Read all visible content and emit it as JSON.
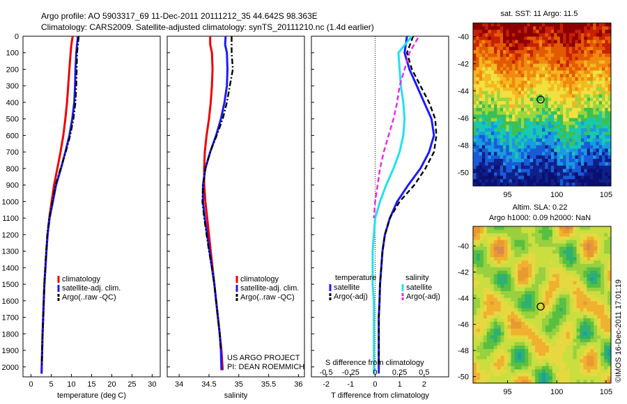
{
  "header": {
    "title_line1": "Argo profile: AO 5903317_69 11-Dec-2011 20111212_35 44.642S 98.363E",
    "title_line2": "Climatology: CARS2009. Satellite-adjusted climatology: synTS_20111210.nc (1.4d earlier)"
  },
  "colors": {
    "climatology": "#ee0000",
    "satellite": "#1a1aff",
    "argo": "#000000",
    "salinity_satellite": "#22e0ee",
    "salinity_argo": "#ee22ee"
  },
  "annotations": {
    "project": "US ARGO PROJECT",
    "pi": "PI: DEAN ROEMMICH",
    "credit": "©IMOS 16-Dec-2011 17:01:19",
    "s_diff_label": "S difference from climatology"
  },
  "chart_data": [
    {
      "id": "temperature",
      "type": "line",
      "xlabel": "temperature (deg C)",
      "xlim": [
        -2,
        32
      ],
      "ylim": [
        2060,
        0
      ],
      "x_ticks": [
        "0",
        "5",
        "10",
        "15",
        "20",
        "25",
        "30"
      ],
      "x_tick_values": [
        0,
        5,
        10,
        15,
        20,
        25,
        30
      ],
      "y_ticks": [
        "0",
        "100",
        "200",
        "300",
        "400",
        "500",
        "600",
        "700",
        "800",
        "900",
        "1000",
        "1100",
        "1200",
        "1300",
        "1400",
        "1500",
        "1600",
        "1700",
        "1800",
        "1900",
        "2000"
      ],
      "y_tick_values": [
        0,
        100,
        200,
        300,
        400,
        500,
        600,
        700,
        800,
        900,
        1000,
        1100,
        1200,
        1300,
        1400,
        1500,
        1600,
        1700,
        1800,
        1900,
        2000
      ],
      "legend": [
        "climatology",
        "satellite-adj. clim.",
        "Argo(..raw -QC)"
      ],
      "legend_position": "lower-middle",
      "series": [
        {
          "name": "climatology",
          "color": "#ee0000",
          "dash": "solid",
          "x": [
            10.3,
            10.0,
            9.8,
            9.5,
            9.2,
            8.9,
            8.5,
            8.0,
            7.3,
            6.5,
            5.7,
            5.1,
            4.5,
            4.1,
            3.8,
            3.55,
            3.3,
            3.15,
            3.0,
            2.85,
            2.75,
            2.65,
            2.6
          ],
          "y": [
            0,
            50,
            100,
            200,
            300,
            400,
            500,
            600,
            700,
            800,
            900,
            1000,
            1100,
            1200,
            1300,
            1400,
            1500,
            1600,
            1700,
            1800,
            1900,
            2000,
            2040
          ]
        },
        {
          "name": "satellite-adj. clim.",
          "color": "#1a1aff",
          "dash": "solid",
          "x": [
            11.6,
            11.4,
            11.2,
            11.0,
            10.9,
            10.7,
            10.2,
            9.5,
            8.5,
            7.4,
            6.2,
            5.4,
            4.6,
            4.1,
            3.8,
            3.55,
            3.3,
            3.15,
            3.0,
            2.85,
            2.75,
            2.65,
            2.6
          ],
          "y": [
            0,
            50,
            100,
            200,
            300,
            400,
            500,
            600,
            700,
            800,
            900,
            1000,
            1100,
            1200,
            1300,
            1400,
            1500,
            1600,
            1700,
            1800,
            1900,
            2000,
            2040
          ]
        },
        {
          "name": "Argo(..raw -QC)",
          "color": "#000000",
          "dash": "dashdot",
          "x": [
            11.8,
            11.6,
            11.4,
            11.3,
            11.2,
            11.0,
            10.5,
            9.7,
            8.6,
            7.3,
            6.1,
            5.3,
            4.5,
            4.0,
            3.75,
            3.5,
            3.3,
            3.15,
            3.0,
            2.85,
            2.75,
            2.65
          ],
          "y": [
            0,
            50,
            100,
            200,
            300,
            400,
            500,
            600,
            700,
            800,
            900,
            1000,
            1100,
            1200,
            1300,
            1400,
            1500,
            1600,
            1700,
            1800,
            1900,
            2000
          ]
        }
      ]
    },
    {
      "id": "salinity",
      "type": "line",
      "xlabel": "salinity",
      "xlim": [
        33.8,
        36.1
      ],
      "ylim": [
        2060,
        0
      ],
      "x_ticks": [
        "34",
        "34.5",
        "35",
        "35.5",
        "36"
      ],
      "x_tick_values": [
        34,
        34.5,
        35,
        35.5,
        36
      ],
      "legend": [
        "climatology",
        "satellite-adj. clim.",
        "Argo(..raw -QC)"
      ],
      "legend_position": "lower-right",
      "series": [
        {
          "name": "climatology",
          "color": "#ee0000",
          "dash": "solid",
          "x": [
            34.52,
            34.52,
            34.55,
            34.56,
            34.55,
            34.53,
            34.5,
            34.46,
            34.43,
            34.42,
            34.42,
            34.44,
            34.47,
            34.5,
            34.53,
            34.56,
            34.59,
            34.62,
            34.65,
            34.68,
            34.71,
            34.73
          ],
          "y": [
            0,
            50,
            100,
            200,
            300,
            400,
            500,
            600,
            700,
            800,
            900,
            1000,
            1100,
            1200,
            1300,
            1400,
            1500,
            1600,
            1700,
            1800,
            1900,
            2020
          ]
        },
        {
          "name": "satellite-adj. clim.",
          "color": "#1a1aff",
          "dash": "solid",
          "x": [
            34.78,
            34.77,
            34.8,
            34.81,
            34.8,
            34.76,
            34.7,
            34.62,
            34.52,
            34.44,
            34.4,
            34.4,
            34.43,
            34.47,
            34.51,
            34.55,
            34.59,
            34.62,
            34.65,
            34.68,
            34.7,
            34.71
          ],
          "y": [
            0,
            50,
            100,
            200,
            300,
            400,
            500,
            600,
            700,
            800,
            900,
            1000,
            1100,
            1200,
            1300,
            1400,
            1500,
            1600,
            1700,
            1800,
            1900,
            2020
          ]
        },
        {
          "name": "Argo(..raw -QC)",
          "color": "#000000",
          "dash": "dashdot",
          "x": [
            34.88,
            34.88,
            34.88,
            34.9,
            34.85,
            34.8,
            34.73,
            34.63,
            34.52,
            34.44,
            34.4,
            34.39,
            34.42,
            34.46,
            34.5,
            34.55,
            34.59,
            34.62,
            34.65,
            34.68,
            34.7
          ],
          "y": [
            0,
            50,
            100,
            200,
            300,
            400,
            500,
            600,
            700,
            800,
            900,
            1000,
            1100,
            1200,
            1300,
            1400,
            1500,
            1600,
            1700,
            1800,
            1900
          ]
        }
      ]
    },
    {
      "id": "differences",
      "type": "line",
      "xlabel": "T difference from climatology",
      "xlim": [
        -2.6,
        3.0
      ],
      "ylim": [
        2060,
        0
      ],
      "x_ticks": [
        "-2",
        "-1",
        "0",
        "1",
        "2"
      ],
      "x_tick_values": [
        -2,
        -1,
        0,
        1,
        2
      ],
      "s_axis_ticks": [
        "-0.5",
        "-0.25",
        "0",
        "0.25",
        "0.5"
      ],
      "s_axis_tick_values_as_T": [
        -2,
        -1,
        0,
        1,
        2
      ],
      "legend_headers": [
        "temperature",
        "salinity"
      ],
      "legend": [
        "satellite",
        "Argo(-adj)",
        "satellite",
        "Argo(-adj)"
      ],
      "legend_position": "lower-middle",
      "series": [
        {
          "name": "satellite",
          "color": "#1a1aff",
          "dash": "solid",
          "x": [
            1.3,
            1.2,
            1.4,
            1.7,
            2.0,
            2.3,
            2.4,
            2.2,
            1.85,
            1.35,
            0.9,
            0.6,
            0.4,
            0.3,
            0.25,
            0.2,
            0.18,
            0.15,
            0.15,
            0.15,
            0.15,
            0.15
          ],
          "y": [
            0,
            100,
            200,
            300,
            400,
            500,
            600,
            700,
            800,
            900,
            1000,
            1100,
            1200,
            1300,
            1400,
            1500,
            1600,
            1700,
            1800,
            1900,
            2000,
            2040
          ]
        },
        {
          "name": "Argo(-adj)",
          "color": "#000000",
          "dash": "dashed",
          "x": [
            1.55,
            1.3,
            1.5,
            1.85,
            2.2,
            2.45,
            2.5,
            2.4,
            2.05,
            1.6,
            1.0,
            0.6,
            0.4,
            0.3,
            0.25,
            0.2,
            0.18,
            0.15,
            0.15,
            0.15,
            0.15
          ],
          "y": [
            0,
            100,
            200,
            300,
            400,
            500,
            600,
            700,
            800,
            900,
            1000,
            1100,
            1200,
            1300,
            1400,
            1500,
            1600,
            1700,
            1800,
            1900,
            2000
          ]
        },
        {
          "name": "salinity satellite",
          "color": "#22e0ee",
          "dash": "solid",
          "x": [
            1.5,
            0.95,
            1.0,
            1.05,
            1.15,
            1.2,
            1.15,
            1.0,
            0.75,
            0.45,
            0.2,
            0.0,
            -0.05,
            -0.1,
            -0.1,
            -0.1,
            -0.05,
            -0.05,
            -0.05,
            -0.05,
            -0.05,
            -0.05
          ],
          "y": [
            0,
            100,
            200,
            300,
            400,
            500,
            600,
            700,
            800,
            900,
            1000,
            1100,
            1200,
            1300,
            1400,
            1500,
            1600,
            1700,
            1800,
            1900,
            2000,
            2040
          ]
        },
        {
          "name": "salinity Argo(-adj)",
          "color": "#ee22ee",
          "dash": "dashed",
          "x": [
            1.75,
            1.4,
            1.2,
            1.0,
            0.9,
            0.75,
            0.55,
            0.35,
            0.2,
            0.1,
            0.0,
            -0.05
          ],
          "y": [
            10,
            100,
            200,
            300,
            400,
            500,
            600,
            700,
            800,
            900,
            1000,
            1100
          ]
        }
      ]
    },
    {
      "id": "sst_map",
      "type": "heatmap",
      "title": "sat. SST: 11 Argo: 11.5",
      "xlim": [
        91.5,
        105.5
      ],
      "ylim": [
        -51,
        -39
      ],
      "x_ticks": [
        "95",
        "100",
        "105"
      ],
      "x_tick_values": [
        95,
        100,
        105
      ],
      "y_ticks": [
        "-40",
        "-42",
        "-44",
        "-46",
        "-48",
        "-50"
      ],
      "y_tick_values": [
        -40,
        -42,
        -44,
        -46,
        -48,
        -50
      ],
      "marker": {
        "lon": 98.36,
        "lat": -44.64
      }
    },
    {
      "id": "sla_map",
      "type": "heatmap",
      "title_line1": "Altim. SLA: 0.22",
      "title_line2": "Argo h1000: 0.09 h2000: NaN",
      "xlim": [
        91.5,
        105.5
      ],
      "ylim": [
        -50.5,
        -38.5
      ],
      "x_ticks": [
        "95",
        "100",
        "105"
      ],
      "x_tick_values": [
        95,
        100,
        105
      ],
      "y_ticks": [
        "-40",
        "-42",
        "-44",
        "-46",
        "-48",
        "-50"
      ],
      "y_tick_values": [
        -40,
        -42,
        -44,
        -46,
        -48,
        -50
      ],
      "marker": {
        "lon": 98.36,
        "lat": -44.64
      }
    }
  ]
}
